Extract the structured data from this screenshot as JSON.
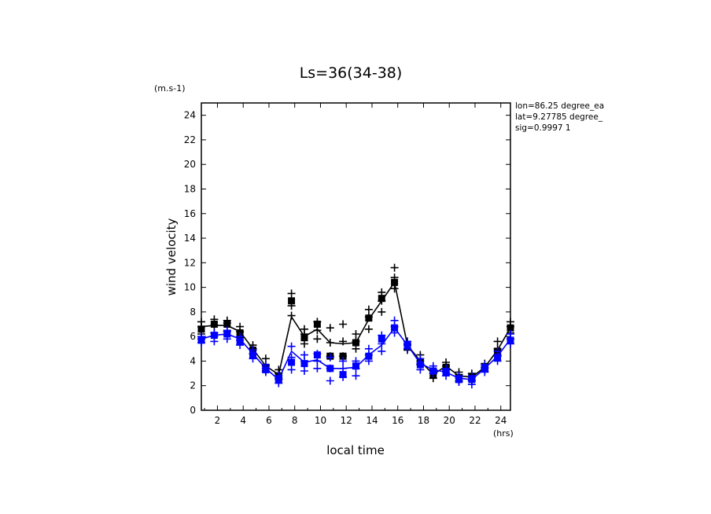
{
  "chart_data": {
    "type": "line",
    "title": "Ls=36(34-38)",
    "ylabel": "wind velocity",
    "yunit": "(m.s-1)",
    "xlabel": "local time",
    "xunit": "(hrs)",
    "xlim": [
      0.75,
      24.75
    ],
    "ylim": [
      0,
      25
    ],
    "xticks": [
      2,
      4,
      6,
      8,
      10,
      12,
      14,
      16,
      18,
      20,
      22,
      24
    ],
    "yticks": [
      0,
      2,
      4,
      6,
      8,
      10,
      12,
      14,
      16,
      18,
      20,
      22,
      24
    ],
    "annotations": [
      "lon=86.25 degree_ea",
      "lat=9.27785 degree_",
      "sig=0.9997 1"
    ],
    "x": [
      0.75,
      1.75,
      2.75,
      3.75,
      4.75,
      5.75,
      6.75,
      7.75,
      8.75,
      9.75,
      10.75,
      11.75,
      12.75,
      13.75,
      14.75,
      15.75,
      16.75,
      17.75,
      18.75,
      19.75,
      20.75,
      21.75,
      22.75,
      23.75,
      24.75
    ],
    "series": [
      {
        "color": "#000000",
        "mean": [
          6.8,
          6.9,
          6.9,
          6.4,
          5.0,
          3.6,
          2.9,
          7.6,
          6.0,
          6.6,
          5.5,
          5.4,
          5.5,
          7.4,
          8.9,
          10.4,
          5.3,
          4.0,
          2.9,
          3.6,
          2.8,
          2.7,
          3.5,
          4.9,
          6.7
        ],
        "markers": [
          6.6,
          7.0,
          7.0,
          6.3,
          4.9,
          3.5,
          2.8,
          8.9,
          5.9,
          7.0,
          4.4,
          4.4,
          5.5,
          7.5,
          9.1,
          10.4,
          5.2,
          3.9,
          2.9,
          3.5,
          2.6,
          2.7,
          3.4,
          4.8,
          6.7
        ],
        "samples": [
          [
            6.2,
            6.8,
            7.2
          ],
          [
            6.3,
            6.9,
            7.4
          ],
          [
            6.4,
            7.1,
            7.3
          ],
          [
            5.9,
            6.4,
            6.8
          ],
          [
            4.6,
            5.0,
            5.3
          ],
          [
            3.2,
            3.6,
            4.2
          ],
          [
            2.6,
            3.0,
            3.3
          ],
          [
            7.7,
            8.5,
            9.5
          ],
          [
            5.4,
            6.2,
            6.6
          ],
          [
            5.8,
            6.5,
            7.2
          ],
          [
            4.4,
            5.5,
            6.7
          ],
          [
            4.4,
            5.6,
            7.0
          ],
          [
            5.0,
            5.6,
            6.2
          ],
          [
            6.6,
            7.6,
            8.2
          ],
          [
            8.0,
            8.9,
            9.6
          ],
          [
            9.9,
            10.8,
            11.6
          ],
          [
            4.9,
            5.3,
            5.6
          ],
          [
            3.7,
            4.0,
            4.5
          ],
          [
            2.6,
            3.0,
            3.3
          ],
          [
            3.3,
            3.6,
            3.9
          ],
          [
            2.4,
            2.9,
            3.1
          ],
          [
            2.4,
            2.7,
            3.0
          ],
          [
            3.2,
            3.5,
            3.8
          ],
          [
            4.5,
            5.0,
            5.6
          ],
          [
            6.3,
            6.8,
            7.2
          ]
        ]
      },
      {
        "color": "#0000ff",
        "mean": [
          5.8,
          6.1,
          6.2,
          5.8,
          4.6,
          3.4,
          2.5,
          4.8,
          3.9,
          4.1,
          3.4,
          3.4,
          3.5,
          4.5,
          5.3,
          6.7,
          5.3,
          3.8,
          3.3,
          3.1,
          2.6,
          2.5,
          3.4,
          4.4,
          5.8
        ],
        "markers": [
          5.7,
          6.1,
          6.2,
          5.6,
          4.5,
          3.3,
          2.5,
          3.9,
          3.8,
          4.5,
          3.4,
          2.9,
          3.6,
          4.4,
          5.8,
          6.7,
          5.3,
          3.7,
          3.2,
          3.1,
          2.5,
          2.5,
          3.4,
          4.3,
          5.7
        ],
        "samples": [
          [
            5.5,
            5.8,
            6.0
          ],
          [
            5.6,
            6.0,
            6.3
          ],
          [
            5.8,
            6.1,
            6.5
          ],
          [
            5.3,
            5.7,
            6.0
          ],
          [
            4.2,
            4.6,
            4.9
          ],
          [
            3.1,
            3.4,
            3.7
          ],
          [
            2.2,
            2.5,
            2.8
          ],
          [
            3.3,
            4.3,
            5.2
          ],
          [
            3.2,
            4.0,
            4.5
          ],
          [
            3.4,
            4.0,
            4.6
          ],
          [
            2.4,
            3.4,
            4.3
          ],
          [
            2.7,
            3.4,
            4.0
          ],
          [
            2.8,
            3.4,
            4.0
          ],
          [
            4.0,
            4.5,
            5.0
          ],
          [
            4.8,
            5.4,
            6.1
          ],
          [
            6.3,
            6.8,
            7.3
          ],
          [
            5.0,
            5.4,
            5.6
          ],
          [
            3.3,
            3.8,
            4.2
          ],
          [
            3.0,
            3.3,
            3.6
          ],
          [
            2.8,
            3.1,
            3.4
          ],
          [
            2.3,
            2.6,
            2.8
          ],
          [
            2.1,
            2.4,
            2.8
          ],
          [
            3.1,
            3.4,
            3.7
          ],
          [
            4.0,
            4.4,
            4.8
          ],
          [
            5.4,
            5.8,
            6.2
          ]
        ]
      }
    ]
  }
}
